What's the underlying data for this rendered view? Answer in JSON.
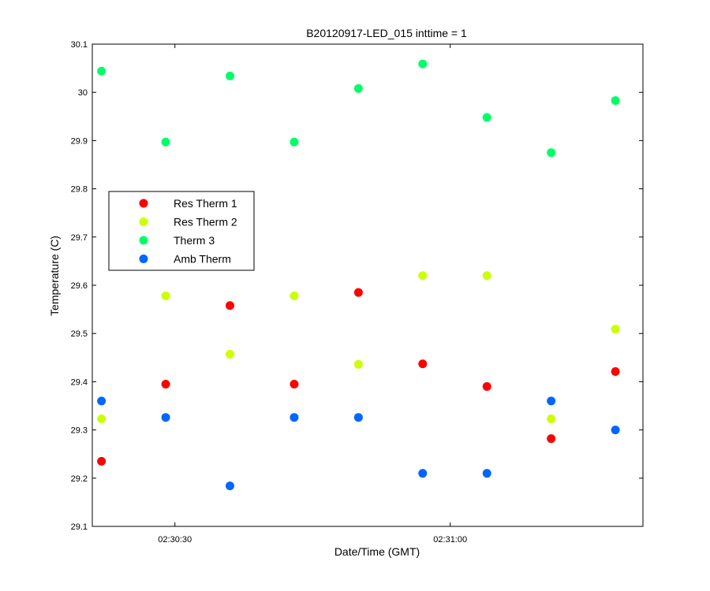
{
  "chart_data": {
    "type": "scatter",
    "title": "B20120917-LED_015 inttime = 1",
    "xlabel": "Date/Time (GMT)",
    "ylabel": "Temperature (C)",
    "x": [
      "02:30:22",
      "02:30:29",
      "02:30:36",
      "02:30:43",
      "02:30:50",
      "02:30:57",
      "02:31:04",
      "02:31:11",
      "02:31:18"
    ],
    "xlim": [
      "02:30:21",
      "02:31:21"
    ],
    "xticks": [
      "02:30:30",
      "02:31:00"
    ],
    "ylim": [
      29.1,
      30.1
    ],
    "yticks": [
      "29.1",
      "29.2",
      "29.3",
      "29.4",
      "29.5",
      "29.6",
      "29.7",
      "29.8",
      "29.9",
      "30",
      "30.1"
    ],
    "grid": false,
    "legend_position": "left",
    "series": [
      {
        "name": "Res Therm 1",
        "color": "#ff0000",
        "values": [
          29.235,
          29.395,
          29.558,
          29.395,
          29.585,
          29.437,
          29.39,
          29.282,
          29.421
        ]
      },
      {
        "name": "Res Therm 2",
        "color": "#ccff00",
        "values": [
          29.323,
          29.578,
          29.457,
          29.578,
          29.436,
          29.62,
          29.62,
          29.323,
          29.509
        ]
      },
      {
        "name": "Therm 3",
        "color": "#00ff66",
        "values": [
          30.044,
          29.897,
          30.034,
          29.897,
          30.008,
          30.059,
          29.948,
          29.875,
          29.983
        ]
      },
      {
        "name": "Amb Therm",
        "color": "#0066ff",
        "values": [
          29.36,
          29.326,
          29.184,
          29.326,
          29.326,
          29.21,
          29.21,
          29.36,
          29.3
        ]
      }
    ]
  }
}
